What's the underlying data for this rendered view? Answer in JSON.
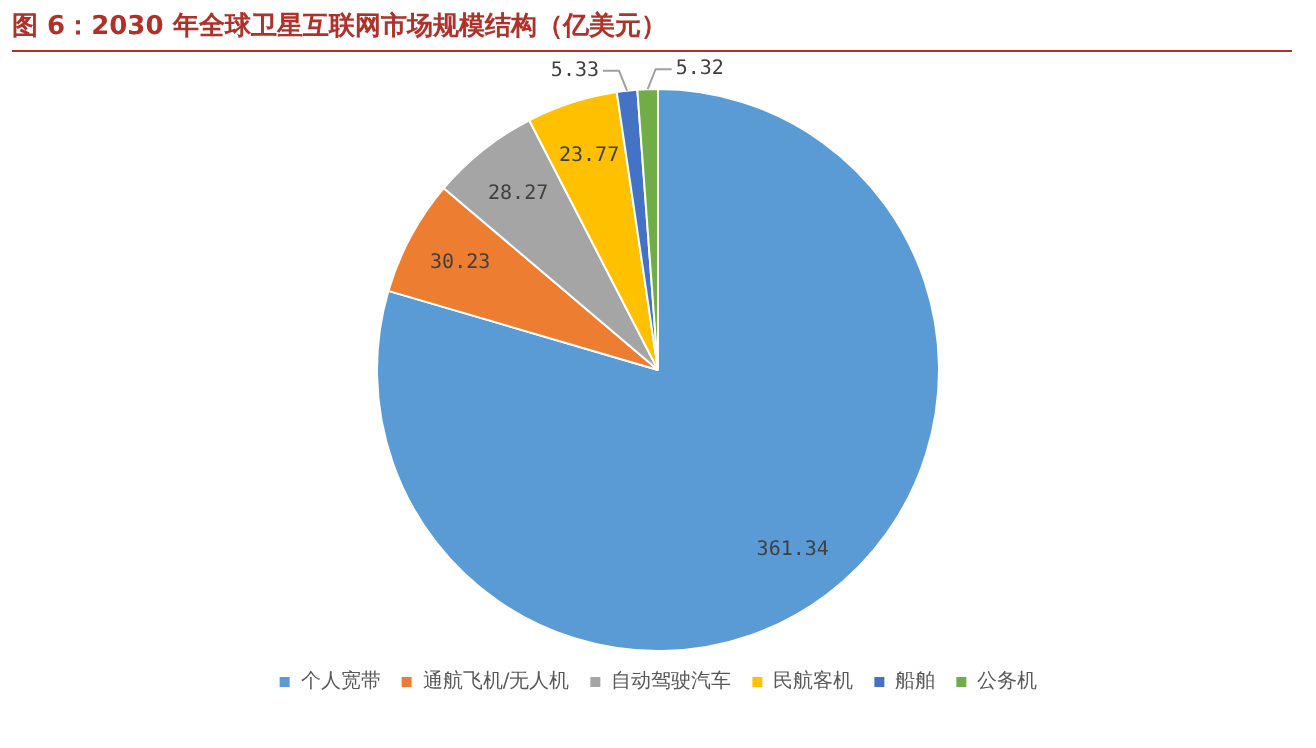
{
  "chart_data": {
    "type": "pie",
    "title": "图 6：2030 年全球卫星互联网市场规模结构（亿美元）",
    "categories": [
      "个人宽带",
      "通航飞机/无人机",
      "自动驾驶汽车",
      "民航客机",
      "船舶",
      "公务机"
    ],
    "values": [
      361.34,
      30.23,
      28.27,
      23.77,
      5.33,
      5.32
    ],
    "colors": [
      "#5b9bd5",
      "#ed7d31",
      "#a5a5a5",
      "#ffc000",
      "#4472c4",
      "#70ad47"
    ],
    "data_labels": true,
    "legend": "bottom"
  }
}
